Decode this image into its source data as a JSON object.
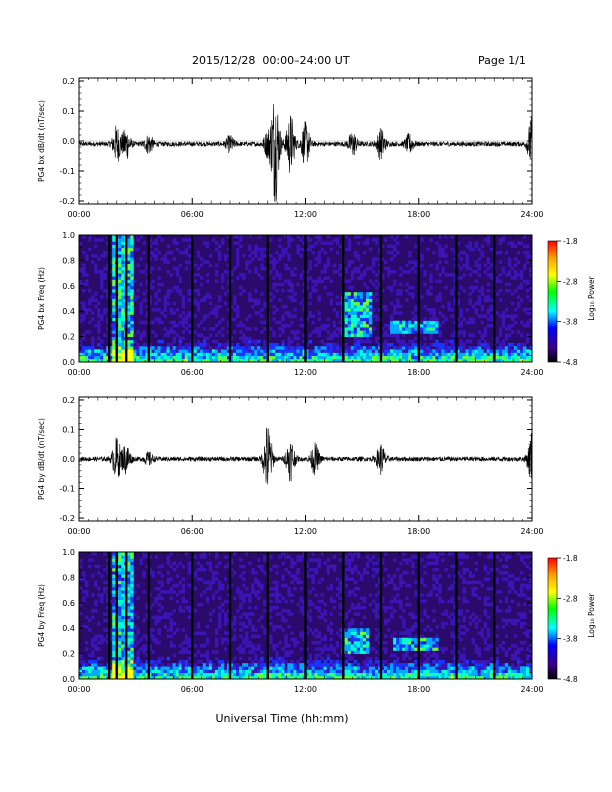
{
  "header": {
    "title": "2015/12/28  00:00–24:00 UT",
    "page": "Page 1/1"
  },
  "x_axis": {
    "label": "Universal Time (hh:mm)",
    "ticks": [
      "00:00",
      "06:00",
      "12:00",
      "18:00",
      "24:00"
    ],
    "range_hours": [
      0,
      24
    ]
  },
  "colorbar": {
    "label": "Log₁₀ Power",
    "ticks": [
      "-1.8",
      "-2.8",
      "-3.8",
      "-4.8"
    ],
    "range": [
      -4.8,
      -1.8
    ],
    "stops": [
      "#ff0000",
      "#ffa000",
      "#ffff00",
      "#00ff00",
      "#00ffff",
      "#0000ff",
      "#3a008a",
      "#000000"
    ]
  },
  "chart_data": [
    {
      "type": "line",
      "ylabel": "PG4 bx dB/dt (nT/sec)",
      "yticks": [
        "0.2",
        "0.1",
        "0.0",
        "-0.1",
        "-0.2"
      ],
      "ylim": [
        -0.21,
        0.21
      ],
      "xlim": [
        0,
        24
      ],
      "baseline": -0.01,
      "activity": [
        {
          "t": 2.0,
          "amp": 0.06
        },
        {
          "t": 2.5,
          "amp": 0.05
        },
        {
          "t": 3.7,
          "amp": 0.03
        },
        {
          "t": 8.0,
          "amp": 0.025
        },
        {
          "t": 10.0,
          "amp": 0.04
        },
        {
          "t": 10.4,
          "amp": 0.19
        },
        {
          "t": 11.2,
          "amp": 0.1
        },
        {
          "t": 12.0,
          "amp": 0.07
        },
        {
          "t": 14.5,
          "amp": 0.04
        },
        {
          "t": 16.0,
          "amp": 0.05
        },
        {
          "t": 17.5,
          "amp": 0.03
        },
        {
          "t": 24.0,
          "amp": 0.09
        }
      ]
    },
    {
      "type": "heatmap",
      "ylabel": "PG4 bx Freq (Hz)",
      "yticks": [
        "1.0",
        "0.8",
        "0.6",
        "0.4",
        "0.2",
        "0.0"
      ],
      "ylim": [
        0,
        1
      ],
      "xlim": [
        0,
        24
      ],
      "data_gaps_hours": [
        1.6,
        2.0,
        2.5,
        3.7,
        6.0,
        8.0,
        10.0,
        12.0,
        14.0,
        16.0,
        18.0,
        20.0,
        22.0
      ],
      "bright_features": [
        {
          "t_start": 1.7,
          "t_end": 2.8,
          "f_max": 1.0
        },
        {
          "t_start": 14.0,
          "t_end": 15.6,
          "f_min": 0.2,
          "f_max": 0.55
        },
        {
          "t_start": 16.5,
          "t_end": 19.0,
          "f_min": 0.22,
          "f_max": 0.33
        }
      ]
    },
    {
      "type": "line",
      "ylabel": "PG4 by dB/dt (nT/sec)",
      "yticks": [
        "0.2",
        "0.1",
        "0.0",
        "-0.1",
        "-0.2"
      ],
      "ylim": [
        -0.21,
        0.21
      ],
      "xlim": [
        0,
        24
      ],
      "baseline": 0.0,
      "activity": [
        {
          "t": 2.0,
          "amp": 0.07
        },
        {
          "t": 2.5,
          "amp": 0.05
        },
        {
          "t": 3.7,
          "amp": 0.02
        },
        {
          "t": 10.0,
          "amp": 0.12
        },
        {
          "t": 11.2,
          "amp": 0.07
        },
        {
          "t": 12.5,
          "amp": 0.05
        },
        {
          "t": 16.0,
          "amp": 0.05
        },
        {
          "t": 24.0,
          "amp": 0.09
        }
      ]
    },
    {
      "type": "heatmap",
      "ylabel": "PG4 by Freq (Hz)",
      "yticks": [
        "1.0",
        "0.8",
        "0.6",
        "0.4",
        "0.2",
        "0.0"
      ],
      "ylim": [
        0,
        1
      ],
      "xlim": [
        0,
        24
      ],
      "data_gaps_hours": [
        1.6,
        2.0,
        2.5,
        3.7,
        6.0,
        8.0,
        10.0,
        12.0,
        14.0,
        16.0,
        18.0,
        20.0,
        22.0
      ],
      "bright_features": [
        {
          "t_start": 1.7,
          "t_end": 2.8,
          "f_max": 1.0
        },
        {
          "t_start": 14.0,
          "t_end": 15.4,
          "f_min": 0.2,
          "f_max": 0.4
        },
        {
          "t_start": 16.6,
          "t_end": 19.0,
          "f_min": 0.22,
          "f_max": 0.33
        }
      ]
    }
  ]
}
